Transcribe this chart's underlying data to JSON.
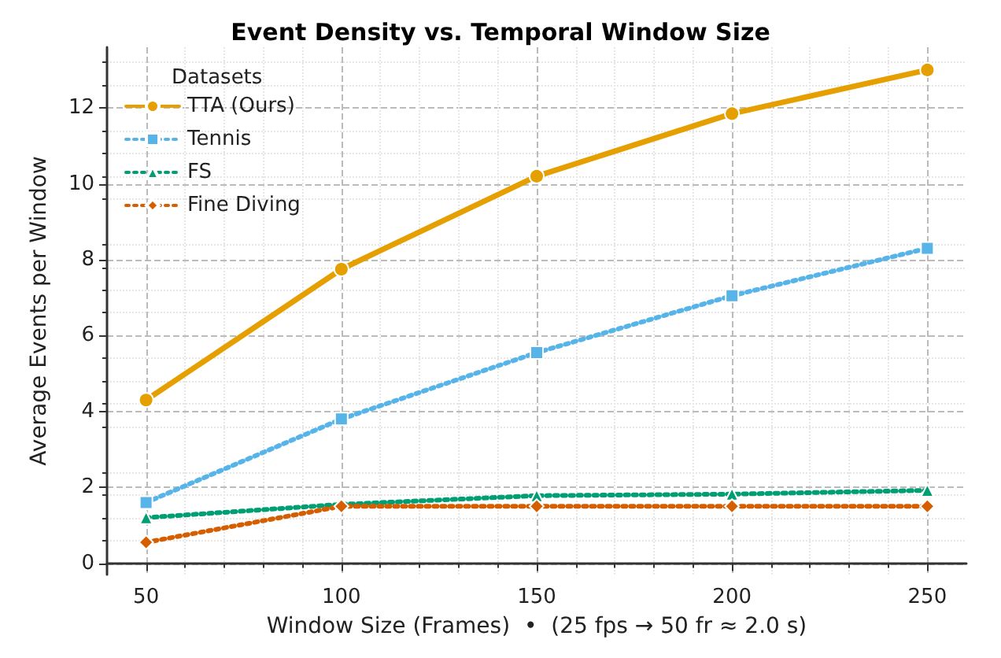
{
  "chart_data": {
    "type": "line",
    "title": "Event Density vs. Temporal Window Size",
    "xlabel": "Window Size (Frames)  •  (25 fps → 50 fr ≈ 2.0 s)",
    "ylabel": "Average Events per Window",
    "legend_title": "Datasets",
    "legend": "top left",
    "grid": true,
    "x": [
      50,
      100,
      150,
      200,
      250
    ],
    "xlim": [
      40,
      260
    ],
    "xticks": [
      50,
      100,
      150,
      200,
      250
    ],
    "ylim": [
      -0.3,
      13.6
    ],
    "yticks": [
      0,
      2,
      4,
      6,
      8,
      10,
      12
    ],
    "series": [
      {
        "name": "TTA (Ours)",
        "color": "#e69f00",
        "values": [
          4.3,
          7.75,
          10.2,
          11.85,
          13.0
        ],
        "marker": "circle",
        "line_style": "solid"
      },
      {
        "name": "Tennis",
        "color": "#56b4e9",
        "values": [
          1.6,
          3.8,
          5.55,
          7.05,
          8.3
        ],
        "marker": "square",
        "line_style": "dotted"
      },
      {
        "name": "FS",
        "color": "#009e73",
        "values": [
          1.2,
          1.55,
          1.78,
          1.82,
          1.92
        ],
        "marker": "triangle",
        "line_style": "dotted"
      },
      {
        "name": "Fine Diving",
        "color": "#d55e00",
        "values": [
          0.55,
          1.5,
          1.5,
          1.5,
          1.5
        ],
        "marker": "diamond",
        "line_style": "dotted"
      }
    ]
  }
}
